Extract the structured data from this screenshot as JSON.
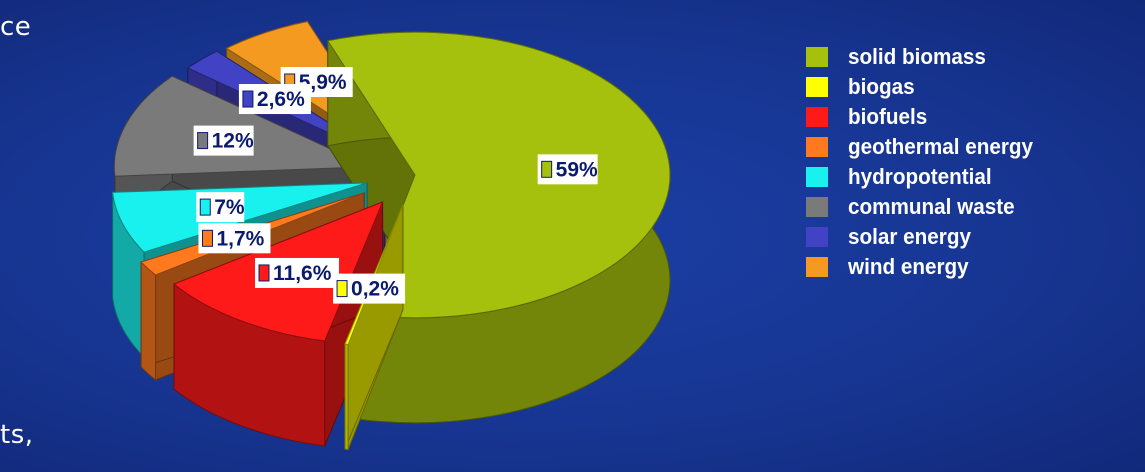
{
  "text_fragments": {
    "top": "ce",
    "bottom": "ts,"
  },
  "chart_data": {
    "type": "pie",
    "categories": [
      "solid biomass",
      "biogas",
      "biofuels",
      "geothermal energy",
      "hydropotential",
      "communal waste",
      "solar energy",
      "wind energy"
    ],
    "values": [
      59,
      0.2,
      11.6,
      1.7,
      7,
      12,
      2.6,
      5.9
    ],
    "data_labels": [
      "59%",
      "0,2%",
      "11,6%",
      "1,7%",
      "7%",
      "12%",
      "2,6%",
      "5,9%"
    ],
    "title": "",
    "legend_position": "right",
    "exploded": true,
    "three_d": true
  },
  "legend": {
    "entries": [
      {
        "label": "solid biomass",
        "color": "#a5c00d"
      },
      {
        "label": "biogas",
        "color": "#ffff00"
      },
      {
        "label": "biofuels",
        "color": "#ff1a1a"
      },
      {
        "label": "geothermal energy",
        "color": "#ff7a1e"
      },
      {
        "label": "hydropotential",
        "color": "#19f1ee"
      },
      {
        "label": "communal waste",
        "color": "#7a7a7a"
      },
      {
        "label": "solar energy",
        "color": "#4242c4"
      },
      {
        "label": "wind energy",
        "color": "#f49a20"
      }
    ]
  }
}
